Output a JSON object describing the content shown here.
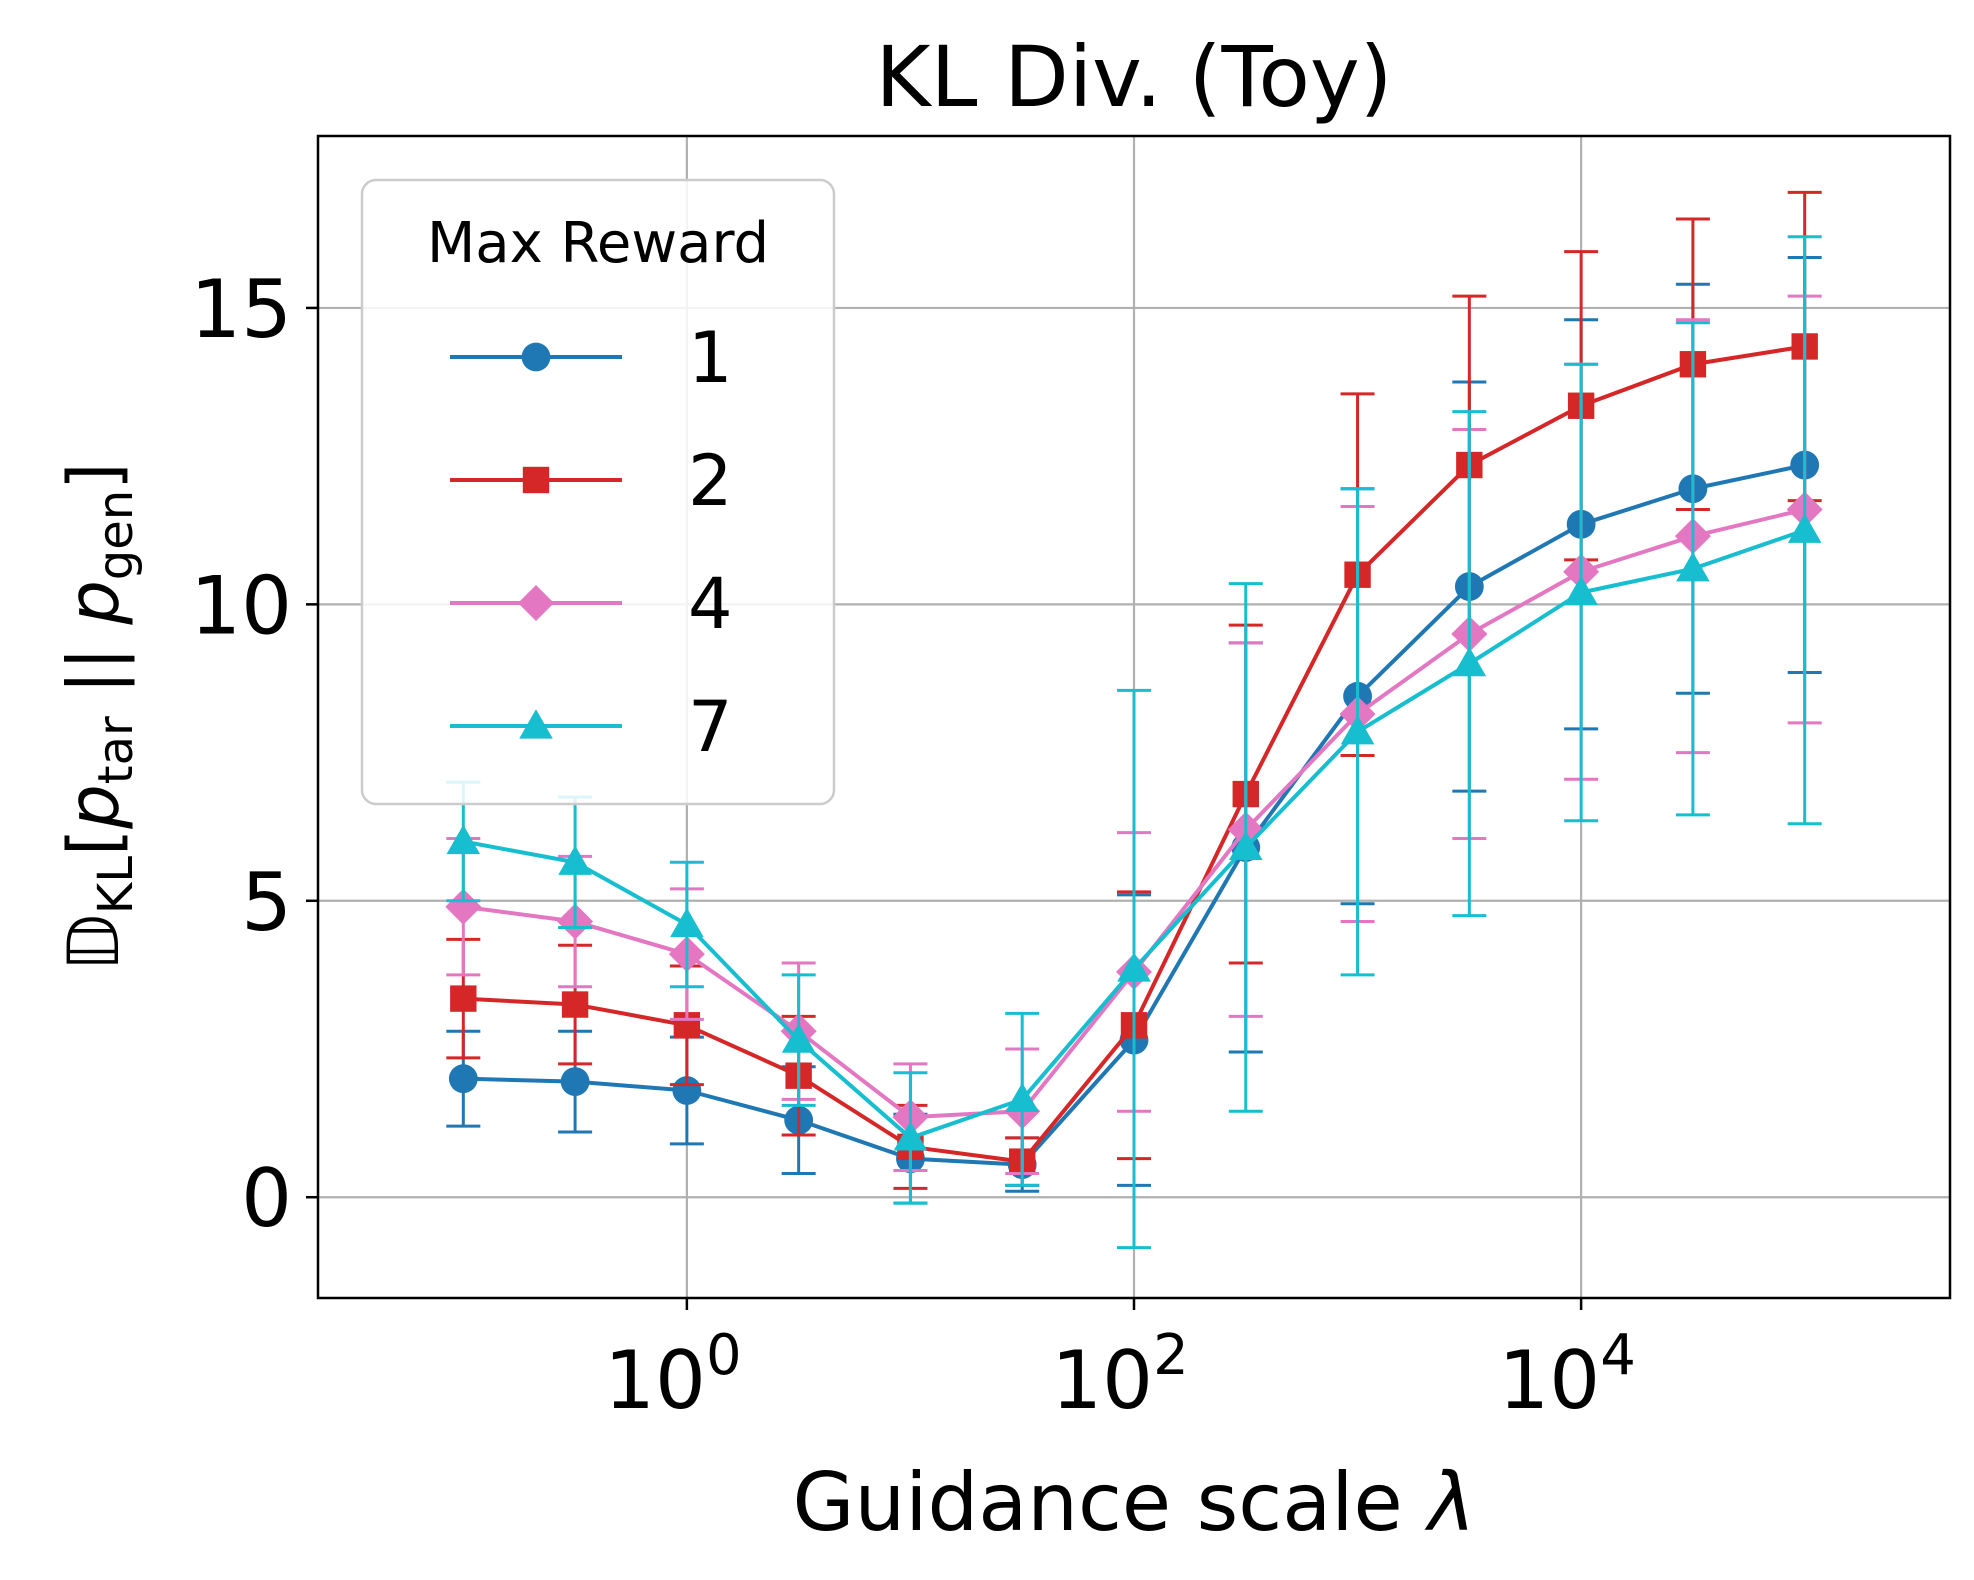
{
  "chart_data": {
    "type": "line",
    "title": "KL Div. (Toy)",
    "xlabel_prefix": "Guidance scale ",
    "xlabel_symbol": "λ",
    "ylabel": {
      "d_symbol": "𝔻",
      "d_sub": "KL",
      "open": "[",
      "p": "p",
      "tar_sub": "tar",
      "sep": " || ",
      "gen_sub": "gen",
      "close": "]"
    },
    "xscale": "log",
    "xlim_log10": [
      -1.65,
      5.65
    ],
    "ylim": [
      -1.7,
      17.9
    ],
    "x": [
      0.1,
      0.3162,
      1,
      3.162,
      10,
      31.62,
      100,
      316.2,
      1000,
      3162,
      10000,
      31620,
      100000
    ],
    "xticks": [
      {
        "base": "10",
        "exp": "0",
        "value": 1
      },
      {
        "base": "10",
        "exp": "2",
        "value": 100
      },
      {
        "base": "10",
        "exp": "4",
        "value": 10000
      }
    ],
    "yticks": [
      {
        "label": "0",
        "value": 0
      },
      {
        "label": "5",
        "value": 5
      },
      {
        "label": "10",
        "value": 10
      },
      {
        "label": "15",
        "value": 15
      }
    ],
    "grid": true,
    "legend": {
      "title": "Max Reward",
      "position": "upper-left"
    },
    "series": [
      {
        "name": "1",
        "color": "#1f77b4",
        "marker": "circle",
        "y": [
          2.0,
          1.95,
          1.8,
          1.3,
          0.65,
          0.55,
          2.65,
          5.9,
          8.45,
          10.3,
          11.35,
          11.95,
          12.35
        ],
        "err": [
          0.8,
          0.85,
          0.9,
          0.9,
          0.75,
          0.45,
          2.45,
          3.45,
          3.5,
          3.45,
          3.45,
          3.45,
          3.5
        ]
      },
      {
        "name": "2",
        "color": "#d62728",
        "marker": "square",
        "y": [
          3.35,
          3.25,
          2.9,
          2.05,
          0.85,
          0.6,
          2.9,
          6.8,
          10.5,
          12.35,
          13.35,
          14.05,
          14.35
        ],
        "err": [
          1.0,
          1.0,
          1.0,
          1.0,
          0.7,
          0.4,
          2.25,
          2.85,
          3.05,
          2.85,
          2.6,
          2.45,
          2.6
        ]
      },
      {
        "name": "4",
        "color": "#e377c2",
        "marker": "diamond",
        "y": [
          4.9,
          4.65,
          4.1,
          2.8,
          1.35,
          1.45,
          3.8,
          6.2,
          8.15,
          9.5,
          10.55,
          11.15,
          11.6
        ],
        "err": [
          1.15,
          1.1,
          1.1,
          1.15,
          0.9,
          1.05,
          2.35,
          3.15,
          3.5,
          3.45,
          3.5,
          3.65,
          3.6
        ]
      },
      {
        "name": "7",
        "color": "#17becf",
        "marker": "triangle",
        "y": [
          6.0,
          5.65,
          4.6,
          2.65,
          1.0,
          1.65,
          3.85,
          5.9,
          7.85,
          9.0,
          10.2,
          10.6,
          11.25
        ],
        "err": [
          1.0,
          1.1,
          1.05,
          1.1,
          1.1,
          1.45,
          4.7,
          4.45,
          4.1,
          4.25,
          3.85,
          4.15,
          4.95
        ]
      }
    ]
  }
}
